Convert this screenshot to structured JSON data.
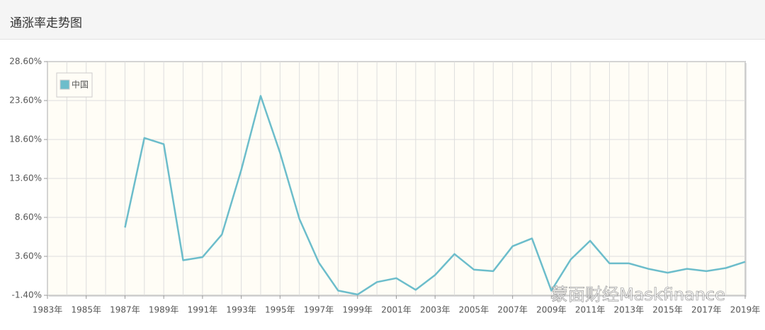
{
  "chart_data": {
    "type": "line",
    "title": "通涨率走势图",
    "x": [
      1987,
      1988,
      1989,
      1990,
      1991,
      1992,
      1993,
      1994,
      1995,
      1996,
      1997,
      1998,
      1999,
      2000,
      2001,
      2002,
      2003,
      2004,
      2005,
      2006,
      2007,
      2008,
      2009,
      2010,
      2011,
      2012,
      2013,
      2014,
      2015,
      2016,
      2017,
      2018,
      2019
    ],
    "series": [
      {
        "name": "中国",
        "color": "#6cbdcb",
        "values": [
          7.3,
          18.8,
          18.0,
          3.1,
          3.5,
          6.4,
          14.7,
          24.2,
          16.9,
          8.4,
          2.8,
          -0.8,
          -1.3,
          0.3,
          0.8,
          -0.7,
          1.2,
          3.9,
          1.9,
          1.7,
          4.9,
          5.9,
          -0.8,
          3.2,
          5.6,
          2.7,
          2.7,
          2.0,
          1.5,
          2.0,
          1.7,
          2.1,
          2.9
        ]
      }
    ],
    "xlim": [
      1983,
      2019
    ],
    "xticks": [
      {
        "value": 1983,
        "label": "1983年"
      },
      {
        "value": 1985,
        "label": "1985年"
      },
      {
        "value": 1987,
        "label": "1987年"
      },
      {
        "value": 1989,
        "label": "1989年"
      },
      {
        "value": 1991,
        "label": "1991年"
      },
      {
        "value": 1993,
        "label": "1993年"
      },
      {
        "value": 1995,
        "label": "1995年"
      },
      {
        "value": 1997,
        "label": "1997年"
      },
      {
        "value": 1999,
        "label": "1999年"
      },
      {
        "value": 2001,
        "label": "2001年"
      },
      {
        "value": 2003,
        "label": "2003年"
      },
      {
        "value": 2005,
        "label": "2005年"
      },
      {
        "value": 2007,
        "label": "2007年"
      },
      {
        "value": 2009,
        "label": "2009年"
      },
      {
        "value": 2011,
        "label": "2011年"
      },
      {
        "value": 2013,
        "label": "2013年"
      },
      {
        "value": 2015,
        "label": "2015年"
      },
      {
        "value": 2017,
        "label": "2017年"
      },
      {
        "value": 2019,
        "label": "2019年"
      }
    ],
    "ylim": [
      -1.4,
      28.6
    ],
    "yticks": [
      {
        "value": -1.4,
        "label": "-1.40%"
      },
      {
        "value": 3.6,
        "label": "3.60%"
      },
      {
        "value": 8.6,
        "label": "8.60%"
      },
      {
        "value": 13.6,
        "label": "13.60%"
      },
      {
        "value": 18.6,
        "label": "18.60%"
      },
      {
        "value": 23.6,
        "label": "23.60%"
      },
      {
        "value": 28.6,
        "label": "28.60%"
      }
    ],
    "grid": true,
    "legend": "upper left",
    "watermark": "蒙面财经Maskfinance"
  }
}
